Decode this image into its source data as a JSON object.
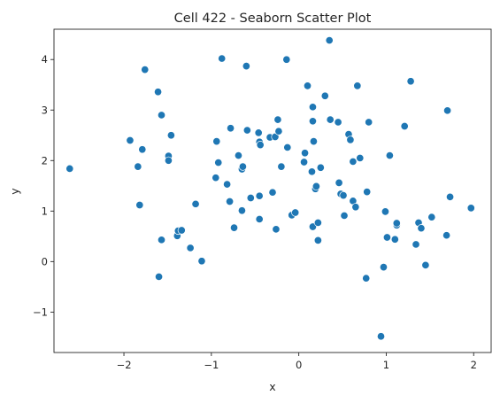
{
  "chart_data": {
    "type": "scatter",
    "title": "Cell 422 - Seaborn Scatter Plot",
    "xlabel": "x",
    "ylabel": "y",
    "xlim": [
      -2.8,
      2.2
    ],
    "ylim": [
      -1.8,
      4.6
    ],
    "xticks": [
      -2,
      -1,
      0,
      1,
      2
    ],
    "xtick_labels": [
      "−2",
      "−1",
      "0",
      "1",
      "2"
    ],
    "yticks": [
      -1,
      0,
      1,
      2,
      3,
      4
    ],
    "ytick_labels": [
      "−1",
      "0",
      "1",
      "2",
      "3",
      "4"
    ],
    "grid": false,
    "marker_color": "#1f77b4",
    "points": [
      [
        -2.62,
        1.84
      ],
      [
        -1.93,
        2.4
      ],
      [
        -1.84,
        1.88
      ],
      [
        -1.82,
        1.12
      ],
      [
        -1.79,
        2.22
      ],
      [
        -1.76,
        3.8
      ],
      [
        -1.61,
        3.36
      ],
      [
        -1.6,
        -0.3
      ],
      [
        -1.57,
        0.43
      ],
      [
        -1.57,
        2.9
      ],
      [
        -1.49,
        2.09
      ],
      [
        -1.49,
        2.0
      ],
      [
        -1.46,
        2.5
      ],
      [
        -1.39,
        0.51
      ],
      [
        -1.38,
        0.61
      ],
      [
        -1.34,
        0.62
      ],
      [
        -1.24,
        0.27
      ],
      [
        -1.18,
        1.14
      ],
      [
        -1.11,
        0.01
      ],
      [
        -0.95,
        1.66
      ],
      [
        -0.94,
        2.38
      ],
      [
        -0.92,
        1.96
      ],
      [
        -0.88,
        4.02
      ],
      [
        -0.82,
        1.53
      ],
      [
        -0.79,
        1.19
      ],
      [
        -0.78,
        2.64
      ],
      [
        -0.74,
        0.67
      ],
      [
        -0.69,
        2.1
      ],
      [
        -0.65,
        1.01
      ],
      [
        -0.65,
        1.83
      ],
      [
        -0.64,
        1.88
      ],
      [
        -0.6,
        3.87
      ],
      [
        -0.59,
        2.6
      ],
      [
        -0.55,
        1.26
      ],
      [
        -0.46,
        2.55
      ],
      [
        -0.45,
        0.84
      ],
      [
        -0.45,
        1.3
      ],
      [
        -0.45,
        2.37
      ],
      [
        -0.44,
        2.31
      ],
      [
        -0.33,
        2.46
      ],
      [
        -0.3,
        1.37
      ],
      [
        -0.27,
        2.47
      ],
      [
        -0.26,
        0.64
      ],
      [
        -0.24,
        2.81
      ],
      [
        -0.23,
        2.58
      ],
      [
        -0.2,
        1.88
      ],
      [
        -0.14,
        4.0
      ],
      [
        -0.13,
        2.26
      ],
      [
        -0.08,
        0.92
      ],
      [
        -0.04,
        0.97
      ],
      [
        0.06,
        1.97
      ],
      [
        0.07,
        2.15
      ],
      [
        0.1,
        3.48
      ],
      [
        0.15,
        1.78
      ],
      [
        0.16,
        3.06
      ],
      [
        0.16,
        2.78
      ],
      [
        0.16,
        0.69
      ],
      [
        0.17,
        2.38
      ],
      [
        0.19,
        1.44
      ],
      [
        0.2,
        1.49
      ],
      [
        0.22,
        0.77
      ],
      [
        0.22,
        0.42
      ],
      [
        0.25,
        1.86
      ],
      [
        0.3,
        3.28
      ],
      [
        0.35,
        4.38
      ],
      [
        0.36,
        2.81
      ],
      [
        0.45,
        2.76
      ],
      [
        0.46,
        1.56
      ],
      [
        0.48,
        1.34
      ],
      [
        0.51,
        1.31
      ],
      [
        0.52,
        0.91
      ],
      [
        0.57,
        2.52
      ],
      [
        0.59,
        2.41
      ],
      [
        0.62,
        1.2
      ],
      [
        0.62,
        1.98
      ],
      [
        0.65,
        1.08
      ],
      [
        0.67,
        3.48
      ],
      [
        0.7,
        2.05
      ],
      [
        0.77,
        -0.33
      ],
      [
        0.78,
        1.38
      ],
      [
        0.8,
        2.76
      ],
      [
        0.94,
        -1.48
      ],
      [
        0.97,
        -0.11
      ],
      [
        0.99,
        0.99
      ],
      [
        1.01,
        0.48
      ],
      [
        1.04,
        2.1
      ],
      [
        1.1,
        0.44
      ],
      [
        1.12,
        0.72
      ],
      [
        1.12,
        0.76
      ],
      [
        1.21,
        2.68
      ],
      [
        1.28,
        3.57
      ],
      [
        1.34,
        0.34
      ],
      [
        1.37,
        0.77
      ],
      [
        1.4,
        0.66
      ],
      [
        1.45,
        -0.07
      ],
      [
        1.52,
        0.88
      ],
      [
        1.69,
        0.52
      ],
      [
        1.7,
        2.99
      ],
      [
        1.73,
        1.28
      ],
      [
        1.97,
        1.06
      ]
    ]
  }
}
